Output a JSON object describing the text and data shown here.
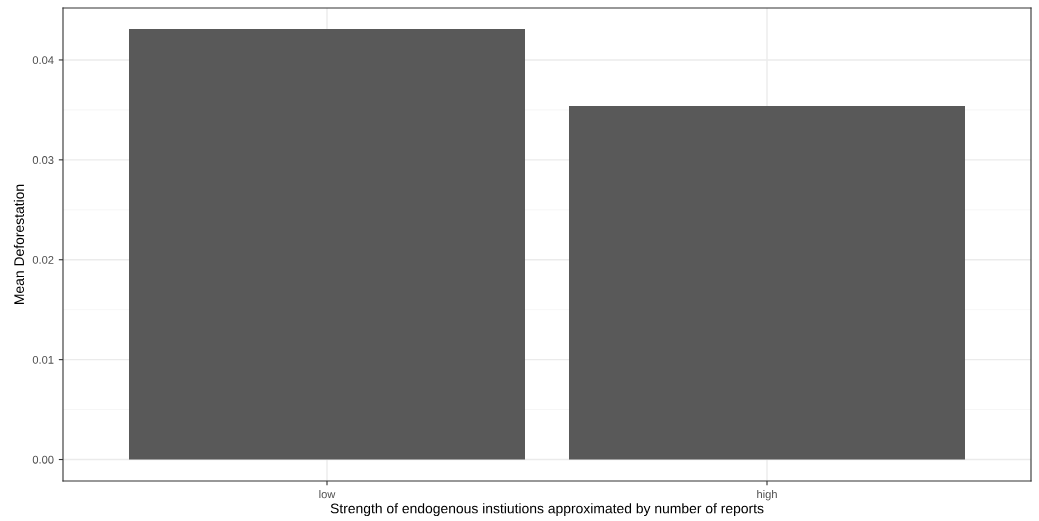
{
  "chart_data": {
    "type": "bar",
    "xlabel": "Strength of endogenous instiutions approximated by number of reports",
    "ylabel": "Mean Deforestation",
    "categories": [
      "low",
      "high"
    ],
    "values": [
      0.0431,
      0.0354
    ],
    "color": "#595959",
    "ylim": [
      -0.00215,
      0.0452
    ],
    "yticks": [
      {
        "value": 0,
        "label": "0.00"
      },
      {
        "value": 0.01,
        "label": "0.01"
      },
      {
        "value": 0.02,
        "label": "0.02"
      },
      {
        "value": 0.03,
        "label": "0.03"
      },
      {
        "value": 0.04,
        "label": "0.04"
      }
    ],
    "grid": true
  }
}
